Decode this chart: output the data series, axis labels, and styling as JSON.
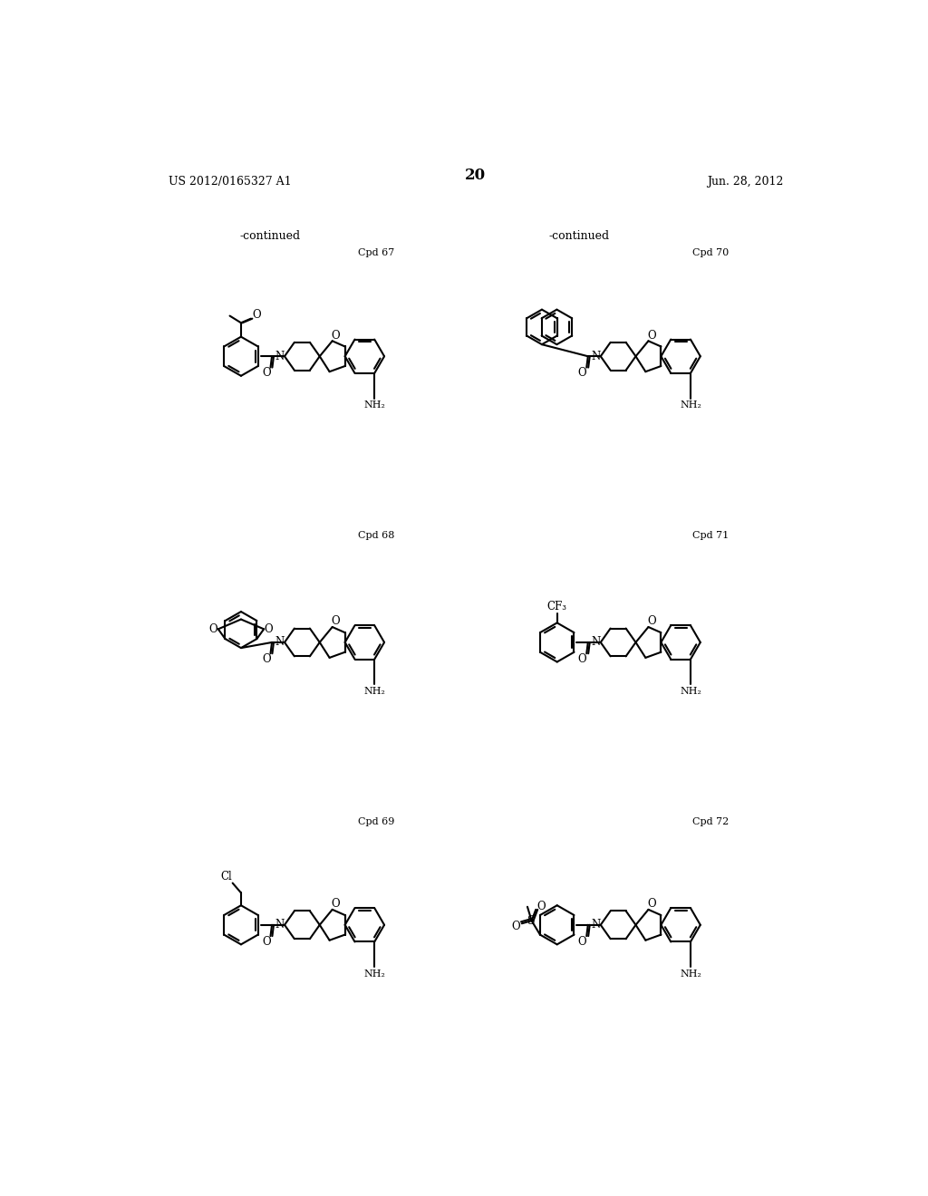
{
  "page_number": "20",
  "patent_number": "US 2012/0165327 A1",
  "patent_date": "Jun. 28, 2012",
  "background_color": "#ffffff",
  "text_color": "#000000",
  "continued_label": "-continued",
  "lw": 1.5
}
